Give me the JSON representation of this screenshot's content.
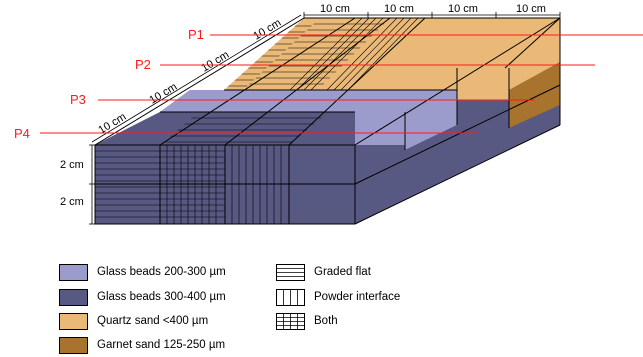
{
  "colors": {
    "glass_200_300": "#9c9ccc",
    "glass_300_400": "#585983",
    "quartz": "#eab877",
    "garnet": "#a8732c",
    "probe_line": "#ff1a1a"
  },
  "dimensions": {
    "top_width_labels": [
      "10 cm",
      "10 cm",
      "10 cm",
      "10 cm"
    ],
    "depth_labels": [
      "10 cm",
      "10 cm",
      "10 cm",
      "10 cm"
    ],
    "height_labels": [
      "2 cm",
      "2 cm"
    ]
  },
  "probes": [
    "P1",
    "P2",
    "P3",
    "P4"
  ],
  "legend": {
    "materials": [
      {
        "label": "Glass beads 200-300 µm",
        "color": "#9c9ccc"
      },
      {
        "label": "Glass beads 300-400 µm",
        "color": "#585983"
      },
      {
        "label": "Quartz sand <400 µm",
        "color": "#eab877"
      },
      {
        "label": "Garnet sand 125-250 µm",
        "color": "#a8732c"
      }
    ],
    "patterns": [
      {
        "label": "Graded flat",
        "icon": "horizontal-lines-pattern"
      },
      {
        "label": "Powder interface",
        "icon": "vertical-lines-pattern"
      },
      {
        "label": "Both",
        "icon": "grid-pattern"
      }
    ]
  }
}
